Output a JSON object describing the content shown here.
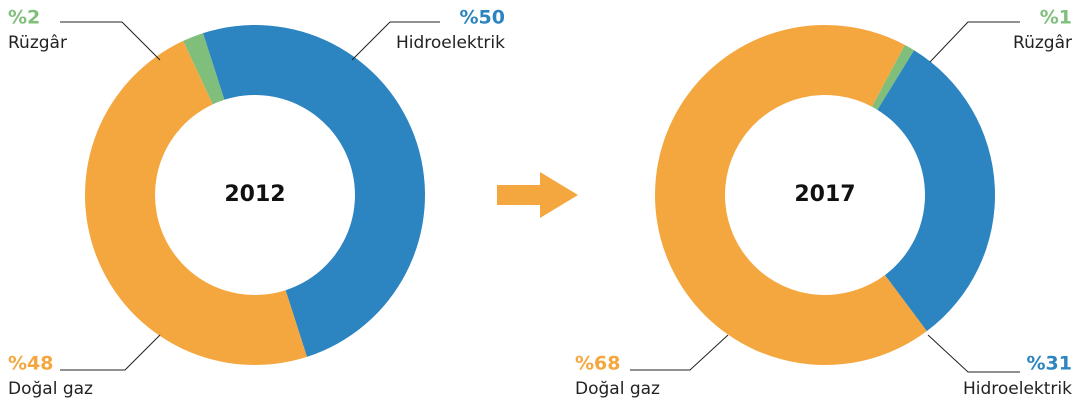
{
  "chart_data": [
    {
      "type": "pie",
      "title": "2012",
      "categories": [
        "Rüzgâr",
        "Hidroelektrik",
        "Doğal gaz"
      ],
      "values": [
        2,
        50,
        48
      ],
      "value_labels": [
        "%2",
        "%50",
        "%48"
      ],
      "colors": [
        "#7fbf7b",
        "#2c84c0",
        "#f4a73f"
      ]
    },
    {
      "type": "pie",
      "title": "2017",
      "categories": [
        "Rüzgâr",
        "Hidroelektrik",
        "Doğal gaz"
      ],
      "values": [
        1,
        31,
        68
      ],
      "value_labels": [
        "%1",
        "%31",
        "%68"
      ],
      "colors": [
        "#7fbf7b",
        "#2c84c0",
        "#f4a73f"
      ]
    }
  ]
}
